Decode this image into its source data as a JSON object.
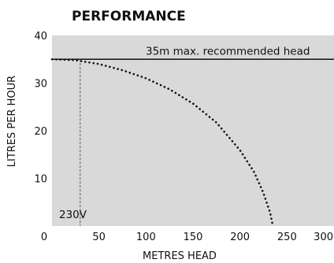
{
  "chart_data": {
    "type": "line",
    "title": "PERFORMANCE",
    "xlabel": "METRES HEAD",
    "ylabel": "LITRES PER HOUR",
    "xlim": [
      0,
      300
    ],
    "ylim": [
      0,
      40
    ],
    "x_ticks": [
      0,
      50,
      100,
      150,
      200,
      250,
      300
    ],
    "y_ticks": [
      10,
      20,
      30,
      40
    ],
    "grid": false,
    "plot_background": "#d9d9d9",
    "series": [
      {
        "name": "230V",
        "style": "dotted",
        "x": [
          0,
          25,
          50,
          75,
          100,
          125,
          150,
          175,
          200,
          215,
          225,
          232,
          235
        ],
        "y": [
          35,
          34.8,
          34,
          32.7,
          31,
          28.7,
          25.7,
          21.7,
          15.9,
          11.3,
          6.9,
          2.8,
          0
        ]
      }
    ],
    "annotations": [
      {
        "type": "hline",
        "y": 35,
        "label": "35m max. recommended  head"
      },
      {
        "type": "vline",
        "x": 30,
        "style": "dashed",
        "label": "230V"
      }
    ]
  }
}
